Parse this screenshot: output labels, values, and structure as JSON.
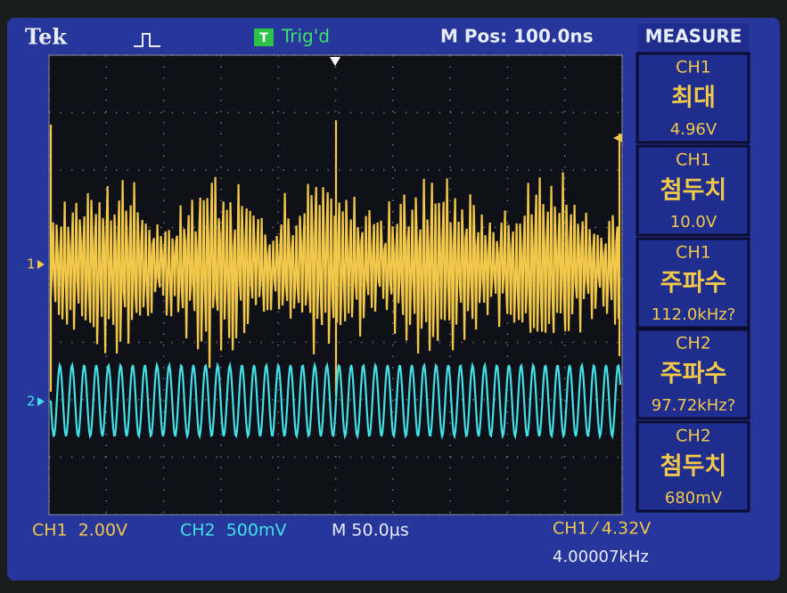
{
  "header": {
    "brand": "Tek",
    "trigger_icon": "T",
    "trigger_status": "Trig'd",
    "m_pos": "M Pos: 100.0ns",
    "menu_title": "MEASURE"
  },
  "measurements": [
    {
      "source": "CH1",
      "label": "최대",
      "value": "4.96V"
    },
    {
      "source": "CH1",
      "label": "첨두치",
      "value": "10.0V"
    },
    {
      "source": "CH1",
      "label": "주파수",
      "value": "112.0kHz?"
    },
    {
      "source": "CH2",
      "label": "주파수",
      "value": "97.72kHz?"
    },
    {
      "source": "CH2",
      "label": "첨두치",
      "value": "680mV"
    }
  ],
  "markers": {
    "ch1": "1",
    "ch2": "2"
  },
  "footer": {
    "ch1_scale": "CH1  2.00V",
    "ch2_scale": "CH2  500mV",
    "timebase": "M 50.0µs",
    "trigger": "CH1 ⁄ 4.32V",
    "trigger_freq": "4.00007kHz"
  }
}
